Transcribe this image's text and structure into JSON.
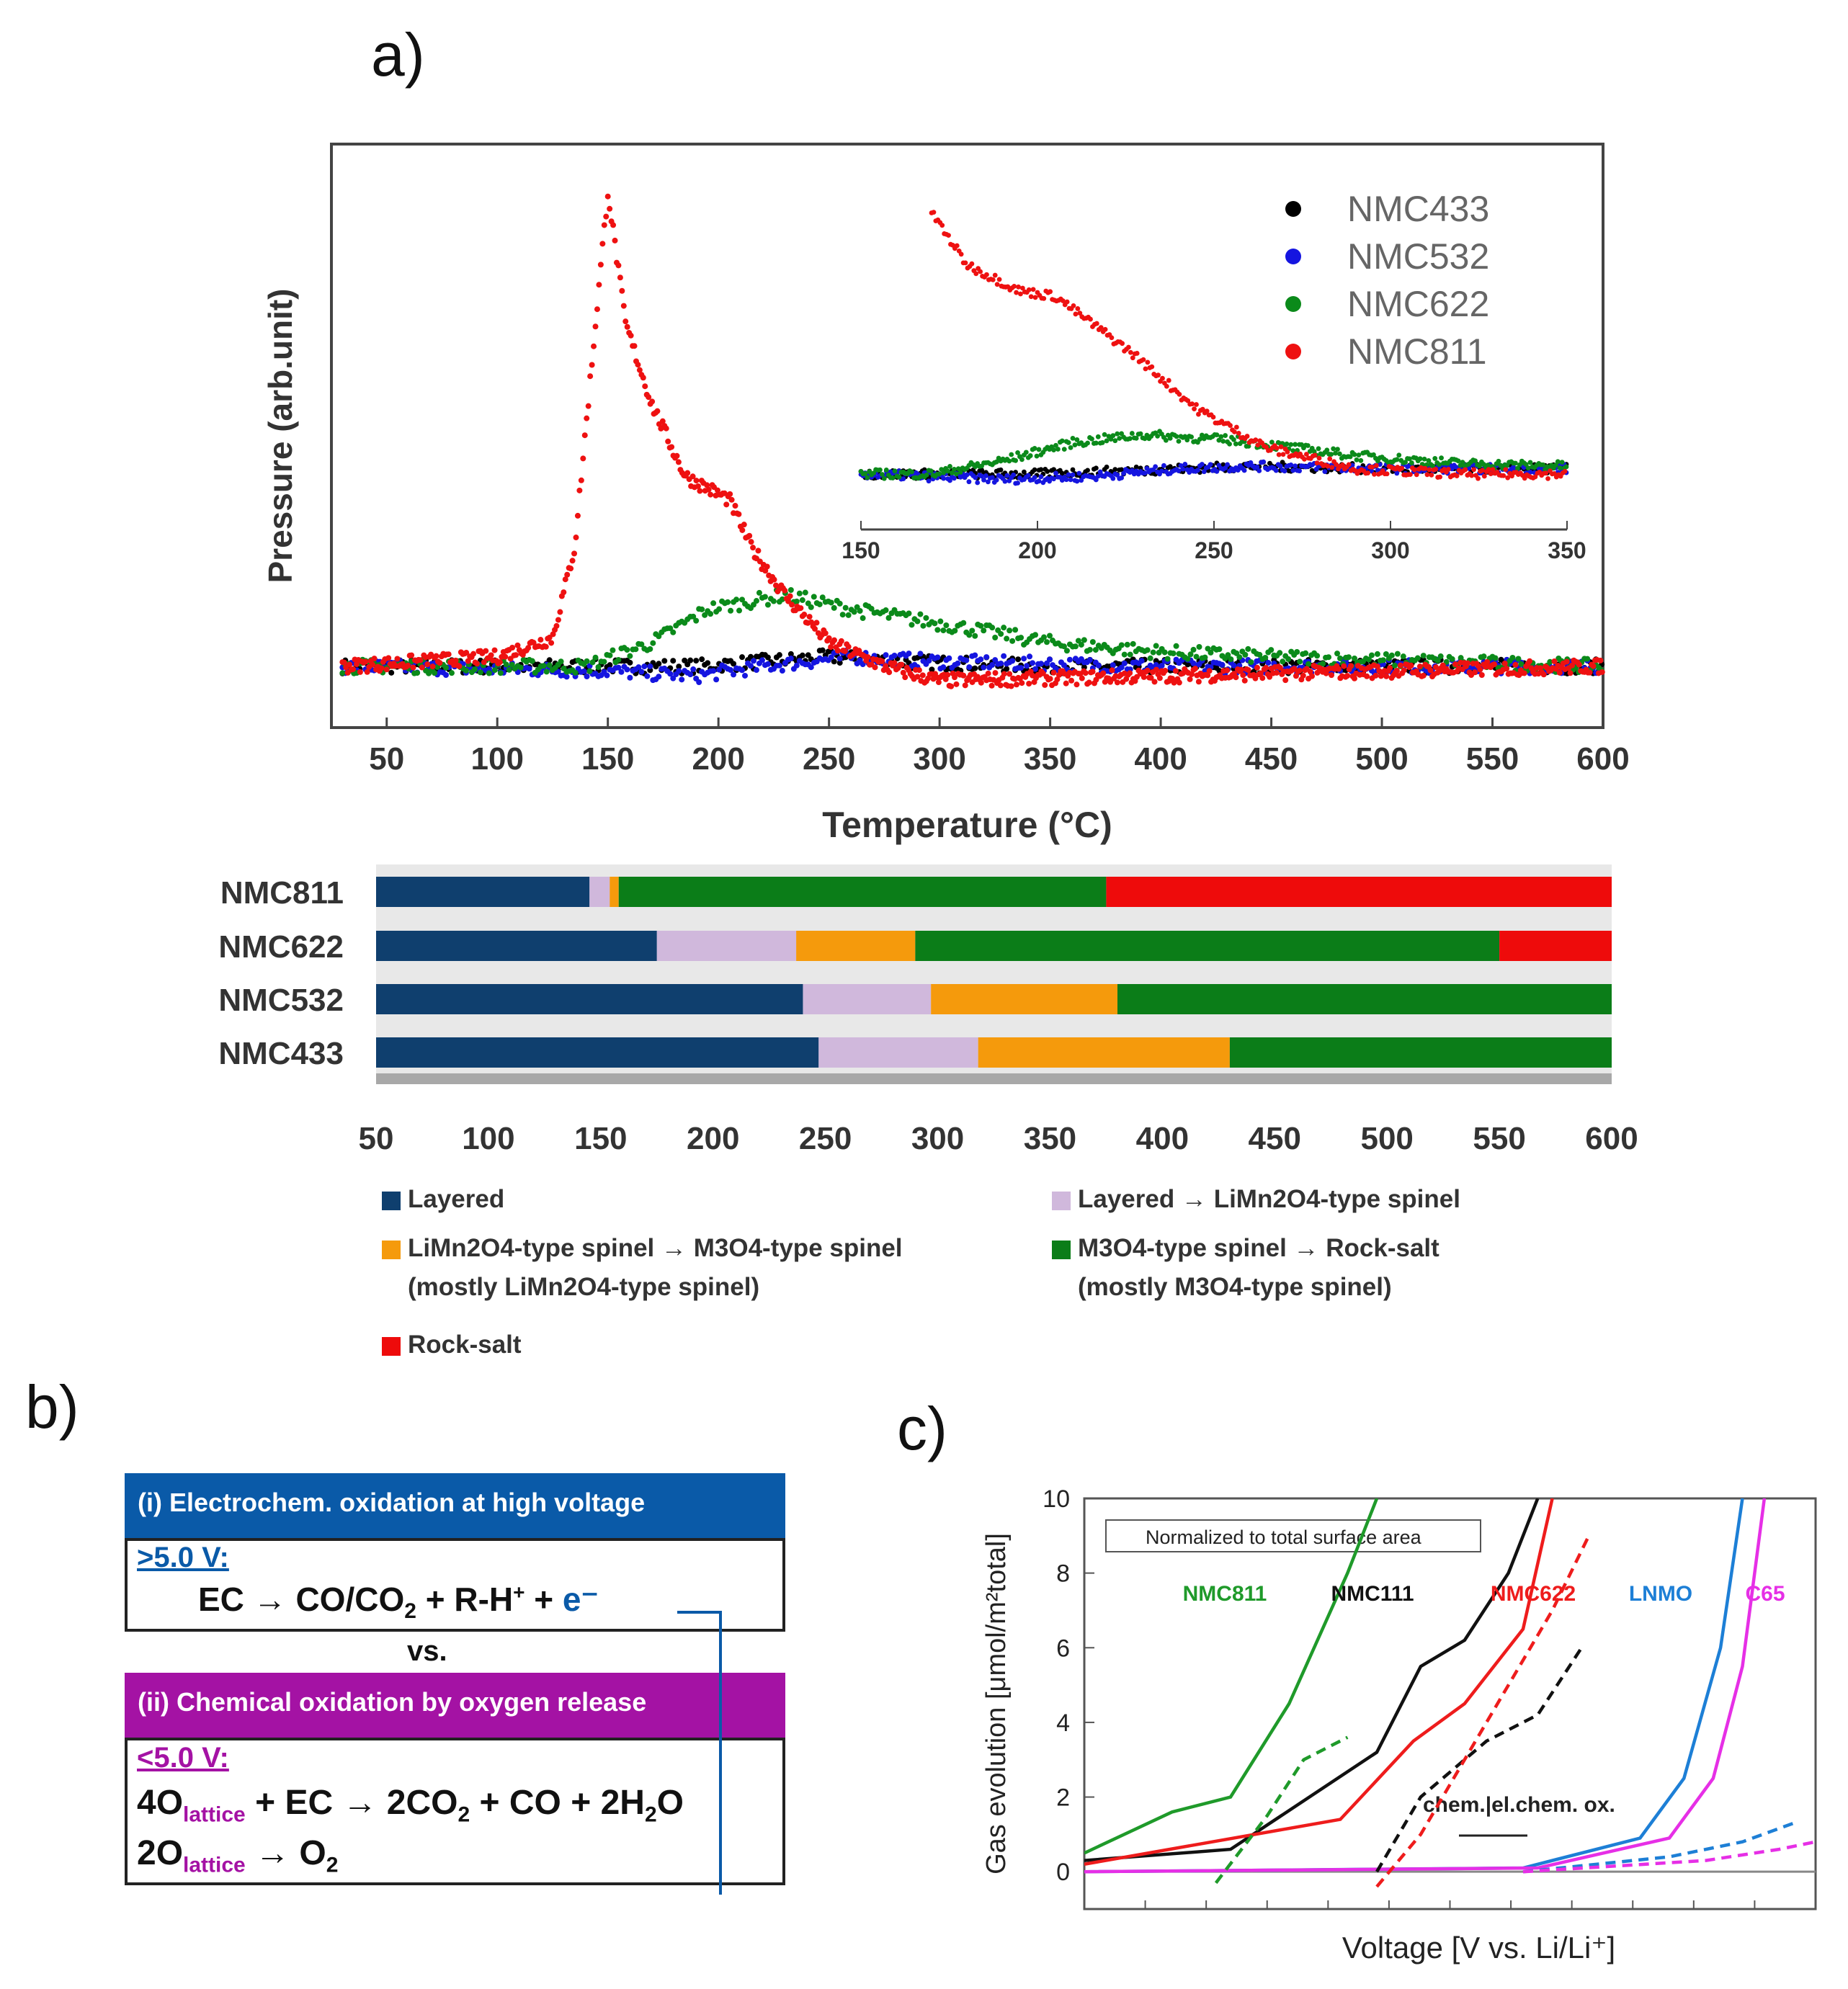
{
  "panels": {
    "a": "a)",
    "b": "b)",
    "c": "c)"
  },
  "colors": {
    "NMC433": "#000000",
    "NMC532": "#1515e0",
    "NMC622": "#0b8a1a",
    "NMC811": "#ee1111",
    "layered": "#0f3f6e",
    "layered_spinel": "#d0b8dc",
    "spinel_spinel": "#f59a0c",
    "spinel_rocksalt": "#0b7d18",
    "rocksalt": "#ee0b0b",
    "c_NMC811": "#1f9a2a",
    "c_NMC111": "#111111",
    "c_NMC622": "#ee1c1c",
    "c_LNMO": "#1d7fd6",
    "c_C65": "#e62fe6",
    "b_blue": "#0a5aa8",
    "b_purple": "#a412a4"
  },
  "chart_data": [
    {
      "type": "scatter",
      "xlabel": "Temperature (°C)",
      "ylabel": "Pressure (arb.unit)",
      "xlim": [
        25,
        600
      ],
      "xticks": [
        "50",
        "100",
        "150",
        "200",
        "250",
        "300",
        "350",
        "400",
        "450",
        "500",
        "550",
        "600"
      ],
      "legend": [
        "NMC433",
        "NMC532",
        "NMC622",
        "NMC811"
      ],
      "legend_position": "top-right",
      "series": [
        {
          "name": "NMC811",
          "points": [
            [
              30,
              0.0
            ],
            [
              100,
              0.02
            ],
            [
              125,
              0.06
            ],
            [
              135,
              0.25
            ],
            [
              142,
              0.6
            ],
            [
              150,
              1.0
            ],
            [
              158,
              0.72
            ],
            [
              170,
              0.55
            ],
            [
              185,
              0.4
            ],
            [
              205,
              0.35
            ],
            [
              215,
              0.25
            ],
            [
              230,
              0.15
            ],
            [
              250,
              0.05
            ],
            [
              275,
              0.0
            ],
            [
              300,
              -0.03
            ],
            [
              400,
              -0.02
            ],
            [
              600,
              0.0
            ]
          ]
        },
        {
          "name": "NMC622",
          "points": [
            [
              30,
              0.0
            ],
            [
              140,
              0.0
            ],
            [
              170,
              0.05
            ],
            [
              195,
              0.12
            ],
            [
              230,
              0.15
            ],
            [
              260,
              0.12
            ],
            [
              300,
              0.09
            ],
            [
              350,
              0.05
            ],
            [
              400,
              0.03
            ],
            [
              450,
              0.02
            ],
            [
              600,
              0.0
            ]
          ]
        },
        {
          "name": "NMC532",
          "points": [
            [
              30,
              0.0
            ],
            [
              150,
              -0.01
            ],
            [
              190,
              -0.02
            ],
            [
              220,
              0.0
            ],
            [
              240,
              0.01
            ],
            [
              260,
              0.02
            ],
            [
              300,
              0.01
            ],
            [
              400,
              0.0
            ],
            [
              600,
              0.0
            ]
          ]
        },
        {
          "name": "NMC433",
          "points": [
            [
              30,
              0.0
            ],
            [
              150,
              0.0
            ],
            [
              190,
              0.0
            ],
            [
              220,
              0.01
            ],
            [
              250,
              0.02
            ],
            [
              280,
              0.01
            ],
            [
              350,
              0.0
            ],
            [
              600,
              0.0
            ]
          ]
        }
      ],
      "inset": {
        "xlim": [
          150,
          350
        ],
        "xticks": [
          "150",
          "200",
          "250",
          "300",
          "350"
        ],
        "series": [
          {
            "name": "NMC811",
            "points": [
              [
                170,
                1.0
              ],
              [
                180,
                0.8
              ],
              [
                195,
                0.7
              ],
              [
                205,
                0.68
              ],
              [
                215,
                0.58
              ],
              [
                228,
                0.45
              ],
              [
                245,
                0.25
              ],
              [
                265,
                0.1
              ],
              [
                290,
                0.02
              ],
              [
                320,
                0.0
              ],
              [
                350,
                0.0
              ]
            ]
          },
          {
            "name": "NMC622",
            "points": [
              [
                150,
                0.0
              ],
              [
                170,
                0.0
              ],
              [
                190,
                0.05
              ],
              [
                210,
                0.12
              ],
              [
                230,
                0.15
              ],
              [
                255,
                0.13
              ],
              [
                290,
                0.07
              ],
              [
                320,
                0.04
              ],
              [
                350,
                0.03
              ]
            ]
          },
          {
            "name": "NMC532",
            "points": [
              [
                150,
                0.0
              ],
              [
                190,
                -0.02
              ],
              [
                215,
                -0.01
              ],
              [
                240,
                0.02
              ],
              [
                260,
                0.03
              ],
              [
                300,
                0.02
              ],
              [
                350,
                0.02
              ]
            ]
          },
          {
            "name": "NMC433",
            "points": [
              [
                150,
                0.0
              ],
              [
                200,
                0.0
              ],
              [
                240,
                0.02
              ],
              [
                260,
                0.03
              ],
              [
                300,
                0.02
              ],
              [
                350,
                0.02
              ]
            ]
          }
        ]
      }
    },
    {
      "type": "bar",
      "orientation": "horizontal-stacked",
      "xlim": [
        50,
        600
      ],
      "xticks": [
        "50",
        "100",
        "150",
        "200",
        "250",
        "300",
        "350",
        "400",
        "450",
        "500",
        "550",
        "600"
      ],
      "categories": [
        "NMC811",
        "NMC622",
        "NMC532",
        "NMC433"
      ],
      "phase_labels": {
        "layered": "Layered",
        "layered_spinel": "Layered → LiMn2O4-type spinel",
        "spinel_spinel": "LiMn2O4-type spinel → M3O4-type spinel",
        "spinel_spinel_note": "(mostly LiMn2O4-type spinel)",
        "spinel_rocksalt": "M3O4-type spinel → Rock-salt",
        "spinel_rocksalt_note": "(mostly M3O4-type spinel)",
        "rocksalt": "Rock-salt"
      },
      "segments": {
        "NMC811": [
          [
            "layered",
            50,
            145
          ],
          [
            "layered_spinel",
            145,
            154
          ],
          [
            "spinel_spinel",
            154,
            158
          ],
          [
            "spinel_rocksalt",
            158,
            375
          ],
          [
            "rocksalt",
            375,
            600
          ]
        ],
        "NMC622": [
          [
            "layered",
            50,
            175
          ],
          [
            "layered_spinel",
            175,
            237
          ],
          [
            "spinel_spinel",
            237,
            290
          ],
          [
            "spinel_rocksalt",
            290,
            550
          ],
          [
            "rocksalt",
            550,
            600
          ]
        ],
        "NMC532": [
          [
            "layered",
            50,
            240
          ],
          [
            "layered_spinel",
            240,
            297
          ],
          [
            "spinel_spinel",
            297,
            380
          ],
          [
            "spinel_rocksalt",
            380,
            600
          ]
        ],
        "NMC433": [
          [
            "layered",
            50,
            247
          ],
          [
            "layered_spinel",
            247,
            318
          ],
          [
            "spinel_spinel",
            318,
            430
          ],
          [
            "spinel_rocksalt",
            430,
            600
          ]
        ]
      }
    },
    {
      "type": "line",
      "xlabel": "Voltage [V vs. Li/Li⁺]",
      "ylabel": "Gas evolution [μmol/m²total]",
      "ylim": [
        -1,
        10
      ],
      "yticks": [
        "0",
        "2",
        "4",
        "6",
        "8",
        "10"
      ],
      "annotation_box": "Normalized to total surface area",
      "annotation": "chem.|el.chem. ox.",
      "labels": [
        "NMC811",
        "NMC111",
        "NMC622",
        "LNMO",
        "C65"
      ],
      "series": [
        {
          "name": "NMC811",
          "points": [
            [
              0,
              0.5
            ],
            [
              0.12,
              1.6
            ],
            [
              0.2,
              2.0
            ],
            [
              0.28,
              4.5
            ],
            [
              0.36,
              8.0
            ],
            [
              0.4,
              10
            ]
          ]
        },
        {
          "name": "NMC111",
          "points": [
            [
              0,
              0.3
            ],
            [
              0.2,
              0.6
            ],
            [
              0.4,
              3.2
            ],
            [
              0.46,
              5.5
            ],
            [
              0.52,
              6.2
            ],
            [
              0.58,
              8.0
            ],
            [
              0.62,
              10
            ]
          ]
        },
        {
          "name": "NMC622",
          "points": [
            [
              0,
              0.2
            ],
            [
              0.35,
              1.4
            ],
            [
              0.45,
              3.5
            ],
            [
              0.52,
              4.5
            ],
            [
              0.6,
              6.5
            ],
            [
              0.64,
              10
            ]
          ]
        },
        {
          "name": "LNMO",
          "points": [
            [
              0,
              0.0
            ],
            [
              0.6,
              0.1
            ],
            [
              0.76,
              0.9
            ],
            [
              0.82,
              2.5
            ],
            [
              0.87,
              6.0
            ],
            [
              0.9,
              10
            ]
          ]
        },
        {
          "name": "C65",
          "points": [
            [
              0,
              0.0
            ],
            [
              0.62,
              0.1
            ],
            [
              0.8,
              0.9
            ],
            [
              0.86,
              2.5
            ],
            [
              0.9,
              5.5
            ],
            [
              0.93,
              10
            ]
          ]
        }
      ],
      "dashed_series": [
        {
          "name": "NMC811",
          "points": [
            [
              0.18,
              -0.3
            ],
            [
              0.25,
              1.5
            ],
            [
              0.3,
              3.0
            ],
            [
              0.36,
              3.6
            ]
          ]
        },
        {
          "name": "NMC111",
          "points": [
            [
              0.4,
              0.0
            ],
            [
              0.46,
              2.0
            ],
            [
              0.55,
              3.5
            ],
            [
              0.62,
              4.2
            ],
            [
              0.68,
              6.0
            ]
          ]
        },
        {
          "name": "NMC622",
          "points": [
            [
              0.4,
              -0.4
            ],
            [
              0.46,
              1.0
            ],
            [
              0.52,
              3.0
            ],
            [
              0.58,
              5.0
            ],
            [
              0.64,
              7.0
            ],
            [
              0.69,
              9.0
            ]
          ]
        },
        {
          "name": "LNMO",
          "points": [
            [
              0.6,
              0.0
            ],
            [
              0.8,
              0.4
            ],
            [
              0.9,
              0.8
            ],
            [
              0.97,
              1.3
            ]
          ]
        },
        {
          "name": "C65",
          "points": [
            [
              0.6,
              0.0
            ],
            [
              0.85,
              0.3
            ],
            [
              0.95,
              0.6
            ],
            [
              1.0,
              0.8
            ]
          ]
        }
      ]
    }
  ],
  "panel_b": {
    "box1_title": "(i) Electrochem. oxidation at high voltage",
    "box1_cond": ">5.0 V:",
    "box1_eq_a": "EC → CO/CO",
    "box1_eq_sub": "2",
    "box1_eq_b": " + R-H",
    "box1_eq_sup": "+",
    "box1_eq_c": " + ",
    "box1_eq_e": "e⁻",
    "vs": "vs.",
    "box2_title": "(ii) Chemical oxidation by oxygen release",
    "box2_cond": "<5.0 V:",
    "eq2_a": "4O",
    "eq2_sub": "lattice",
    "eq2_b": " + EC → 2CO",
    "eq2_sub2": "2",
    "eq2_c": " + CO + 2H",
    "eq2_sub3": "2",
    "eq2_d": "O",
    "eq3_a": "2O",
    "eq3_sub": "lattice",
    "eq3_b": " → O",
    "eq3_sub2": "2"
  }
}
